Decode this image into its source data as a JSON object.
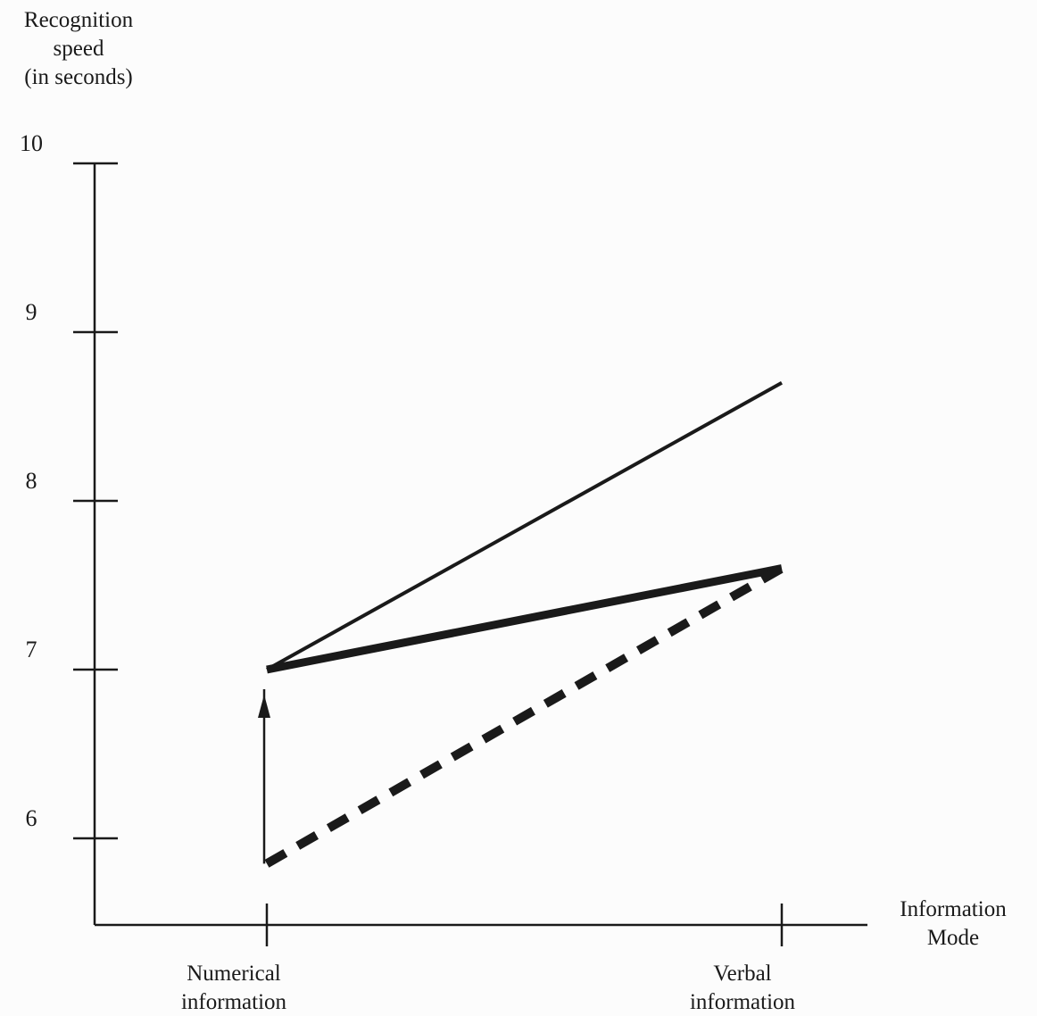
{
  "chart_data": {
    "type": "line",
    "title": "",
    "ylabel": [
      "Recognition",
      "speed",
      "(in seconds)"
    ],
    "xlabel": [
      "Information",
      "Mode"
    ],
    "categories": [
      [
        "Numerical",
        "information"
      ],
      [
        "Verbal",
        "information"
      ]
    ],
    "yticks": [
      "6",
      "7",
      "8",
      "9",
      "10"
    ],
    "ylim": [
      5.5,
      10
    ],
    "grid": false,
    "series": [
      {
        "values": [
          7.0,
          8.7
        ],
        "style": "solid-thin",
        "color": "#1a1a1a"
      },
      {
        "values": [
          7.0,
          7.6
        ],
        "style": "solid-thick",
        "color": "#1a1a1a"
      },
      {
        "values": [
          5.85,
          7.6
        ],
        "style": "dashed-thick",
        "color": "#1a1a1a"
      }
    ],
    "annotations": [
      {
        "type": "arrow",
        "category_index": 0,
        "from": 5.85,
        "to": 7.0
      }
    ]
  }
}
